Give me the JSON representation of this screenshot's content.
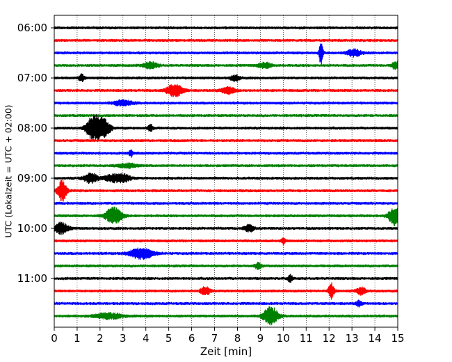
{
  "chart_data": {
    "type": "line",
    "title": "",
    "xlabel": "Zeit  [min]",
    "ylabel": "UTC (Lokalzeit = UTC + 02:00)",
    "xlim": [
      0,
      15
    ],
    "x_ticks": [
      "0",
      "1",
      "2",
      "3",
      "4",
      "5",
      "6",
      "7",
      "8",
      "9",
      "10",
      "11",
      "12",
      "13",
      "14",
      "15"
    ],
    "y_ticks": [
      "06:00",
      "07:00",
      "08:00",
      "09:00",
      "10:00",
      "11:00"
    ],
    "grid": "vertical dotted",
    "trace_interval_min": 15,
    "colors": [
      "#000000",
      "#ff0000",
      "#0000ff",
      "#008000"
    ],
    "traces": [
      {
        "start": "06:00",
        "color": "#000000",
        "events": []
      },
      {
        "start": "06:15",
        "color": "#ff0000",
        "events": []
      },
      {
        "start": "06:30",
        "color": "#0000ff",
        "events": [
          [
            11.65,
            18,
            0.08
          ],
          [
            13.1,
            5,
            0.3
          ]
        ]
      },
      {
        "start": "06:45",
        "color": "#008000",
        "events": [
          [
            4.2,
            5,
            0.3
          ],
          [
            9.2,
            4,
            0.3
          ],
          [
            14.9,
            6,
            0.15
          ]
        ]
      },
      {
        "start": "07:00",
        "color": "#000000",
        "events": [
          [
            1.2,
            5,
            0.12
          ],
          [
            7.9,
            4,
            0.2
          ]
        ]
      },
      {
        "start": "07:15",
        "color": "#ff0000",
        "events": [
          [
            5.25,
            9,
            0.35
          ],
          [
            7.6,
            5,
            0.3
          ]
        ]
      },
      {
        "start": "07:30",
        "color": "#0000ff",
        "events": [
          [
            3.0,
            4,
            0.4
          ]
        ]
      },
      {
        "start": "07:45",
        "color": "#008000",
        "events": []
      },
      {
        "start": "08:00",
        "color": "#000000",
        "events": [
          [
            1.6,
            12,
            0.25
          ],
          [
            1.9,
            13,
            0.25
          ],
          [
            2.2,
            12,
            0.25
          ],
          [
            4.2,
            5,
            0.1
          ]
        ]
      },
      {
        "start": "08:15",
        "color": "#ff0000",
        "events": []
      },
      {
        "start": "08:30",
        "color": "#0000ff",
        "events": [
          [
            3.35,
            5,
            0.08
          ]
        ]
      },
      {
        "start": "08:45",
        "color": "#008000",
        "events": [
          [
            3.2,
            3,
            0.4
          ]
        ]
      },
      {
        "start": "09:00",
        "color": "#000000",
        "events": [
          [
            1.6,
            7,
            0.3
          ],
          [
            2.5,
            5,
            0.3
          ],
          [
            3.0,
            6,
            0.3
          ]
        ]
      },
      {
        "start": "09:15",
        "color": "#ff0000",
        "events": [
          [
            0.35,
            15,
            0.2
          ]
        ]
      },
      {
        "start": "09:30",
        "color": "#0000ff",
        "events": []
      },
      {
        "start": "09:45",
        "color": "#008000",
        "events": [
          [
            2.6,
            12,
            0.35
          ],
          [
            14.85,
            13,
            0.25
          ]
        ]
      },
      {
        "start": "10:00",
        "color": "#000000",
        "events": [
          [
            0.3,
            8,
            0.3
          ],
          [
            8.5,
            5,
            0.2
          ]
        ]
      },
      {
        "start": "10:15",
        "color": "#ff0000",
        "events": [
          [
            10.0,
            5,
            0.08
          ]
        ]
      },
      {
        "start": "10:30",
        "color": "#0000ff",
        "events": [
          [
            3.8,
            8,
            0.5
          ]
        ]
      },
      {
        "start": "10:45",
        "color": "#008000",
        "events": [
          [
            8.9,
            4,
            0.15
          ]
        ]
      },
      {
        "start": "11:00",
        "color": "#000000",
        "events": [
          [
            10.3,
            5,
            0.1
          ]
        ]
      },
      {
        "start": "11:15",
        "color": "#ff0000",
        "events": [
          [
            6.6,
            6,
            0.2
          ],
          [
            12.1,
            11,
            0.12
          ],
          [
            13.4,
            5,
            0.2
          ]
        ]
      },
      {
        "start": "11:30",
        "color": "#0000ff",
        "events": [
          [
            13.3,
            4,
            0.12
          ]
        ]
      },
      {
        "start": "11:45",
        "color": "#008000",
        "events": [
          [
            2.4,
            4,
            0.6
          ],
          [
            9.45,
            14,
            0.3
          ]
        ]
      }
    ]
  }
}
